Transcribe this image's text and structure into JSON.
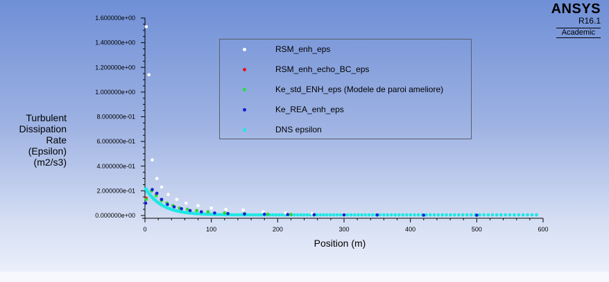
{
  "brand": {
    "name": "ANSYS",
    "version": "R16.1",
    "edition": "Academic"
  },
  "colors": {
    "RSM_enh_eps": "#ffffff",
    "RSM_enh_echo_BC_eps": "#e8141d",
    "Ke_std_ENH_eps": "#25e03a",
    "Ke_REA_enh_eps": "#1320d8",
    "DNS epsilon": "#1ee7e4"
  },
  "chart_data": {
    "type": "scatter",
    "xlabel": "Position (m)",
    "ylabel_lines": [
      "Turbulent",
      "Dissipation",
      "Rate",
      "(Epsilon)",
      "(m2/s3)"
    ],
    "xlim": [
      0,
      600
    ],
    "ylim": [
      0,
      1.6
    ],
    "x_ticks": [
      0,
      100,
      200,
      300,
      400,
      500,
      600
    ],
    "x_tick_labels": [
      "0",
      "100",
      "200",
      "300",
      "400",
      "500",
      "600"
    ],
    "y_ticks": [
      0,
      0.2,
      0.4,
      0.6,
      0.8,
      1.0,
      1.2,
      1.4,
      1.6
    ],
    "y_tick_labels": [
      "0.000000e+00",
      "2.000000e-01",
      "4.000000e-01",
      "6.000000e-01",
      "8.000000e-01",
      "1.000000e+00",
      "1.200000e+00",
      "1.400000e+00",
      "1.600000e+00"
    ],
    "grid": false,
    "legend_placement": "top-center",
    "series": [
      {
        "name": "RSM_enh_eps",
        "x": [
          2,
          6,
          11,
          18,
          25,
          35,
          48,
          62,
          80,
          100,
          122,
          148,
          178,
          212,
          252,
          300
        ],
        "y": [
          1.53,
          1.14,
          0.45,
          0.3,
          0.23,
          0.17,
          0.13,
          0.1,
          0.08,
          0.06,
          0.05,
          0.045,
          0.03,
          0.02,
          0.015,
          0.01
        ]
      },
      {
        "name": "RSM_enh_echo_BC_eps",
        "x": [
          2,
          10,
          17,
          25,
          33,
          42,
          52,
          64,
          78,
          95,
          120,
          150,
          185,
          220,
          255,
          300
        ],
        "y": [
          0.14,
          0.2,
          0.17,
          0.13,
          0.1,
          0.08,
          0.06,
          0.05,
          0.04,
          0.03,
          0.02,
          0.015,
          0.01,
          0.008,
          0.006,
          0.005
        ]
      },
      {
        "name": "Ke_std_ENH_eps",
        "x": [
          2,
          10,
          17,
          25,
          33,
          42,
          52,
          64,
          78,
          95,
          120,
          150,
          185,
          220,
          255,
          300
        ],
        "y": [
          0.13,
          0.2,
          0.16,
          0.12,
          0.1,
          0.08,
          0.06,
          0.05,
          0.04,
          0.03,
          0.02,
          0.015,
          0.01,
          0.008,
          0.006,
          0.005
        ]
      },
      {
        "name": "Ke_REA_enh_eps",
        "x": [
          1,
          11,
          18,
          25,
          34,
          44,
          55,
          68,
          85,
          105,
          125,
          150,
          180,
          215,
          255,
          300,
          350,
          420,
          500
        ],
        "y": [
          0.1,
          0.21,
          0.18,
          0.13,
          0.09,
          0.07,
          0.055,
          0.04,
          0.03,
          0.02,
          0.015,
          0.012,
          0.01,
          0.008,
          0.006,
          0.005,
          0.004,
          0.003,
          0.002
        ]
      },
      {
        "name": "DNS epsilon",
        "dense": true,
        "x_range": [
          1,
          590
        ],
        "point_count": 140,
        "curve": {
          "y0": 0.225,
          "y_inf": 0.005,
          "decay": 0.04,
          "min_at": 3,
          "min_value": 0.16
        }
      }
    ]
  }
}
